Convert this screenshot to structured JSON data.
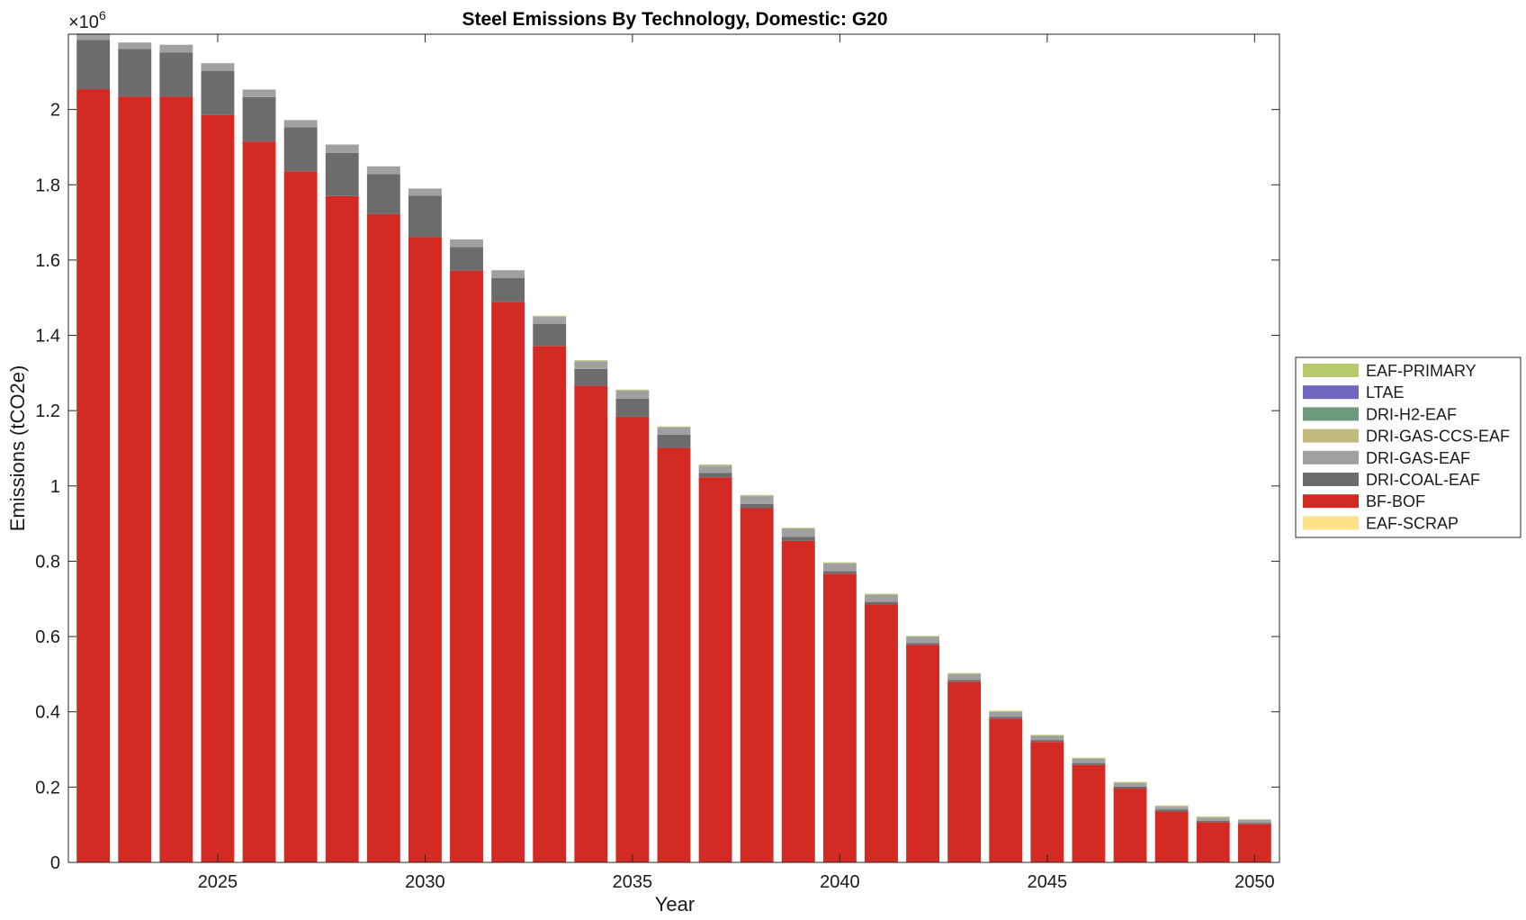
{
  "chart_data": {
    "type": "bar",
    "stacked": true,
    "title": "Steel Emissions By Technology, Domestic: G20",
    "xlabel": "Year",
    "ylabel": "Emissions (tCO2e)",
    "y_exponent_label": "×10",
    "y_exponent": "6",
    "ylim": [
      0,
      2200000
    ],
    "xlim": [
      2021.4,
      2050.6
    ],
    "xticks": [
      "2025",
      "2030",
      "2035",
      "2040",
      "2045",
      "2050"
    ],
    "yticks": [
      "0",
      "0.2",
      "0.4",
      "0.6",
      "0.8",
      "1",
      "1.2",
      "1.4",
      "1.6",
      "1.8",
      "2"
    ],
    "grid": false,
    "legend_position": "outside-right",
    "x": [
      2022,
      2023,
      2024,
      2025,
      2026,
      2027,
      2028,
      2029,
      2030,
      2031,
      2032,
      2033,
      2034,
      2035,
      2036,
      2037,
      2038,
      2039,
      2040,
      2041,
      2042,
      2043,
      2044,
      2045,
      2046,
      2047,
      2048,
      2049,
      2050
    ],
    "series": [
      {
        "name": "EAF-SCRAP",
        "color": "#fde28a",
        "values": [
          0,
          0,
          0,
          0,
          0,
          0,
          0,
          0,
          0,
          0,
          0,
          0,
          0,
          0,
          0,
          0,
          0,
          0,
          0,
          0,
          0,
          0,
          0,
          0,
          0,
          0,
          0,
          0,
          0
        ]
      },
      {
        "name": "BF-BOF",
        "color": "#d42a24",
        "values": [
          2054000,
          2034000,
          2034000,
          1985000,
          1915000,
          1836000,
          1770000,
          1722000,
          1661000,
          1572000,
          1489000,
          1372000,
          1266000,
          1184000,
          1101000,
          1023000,
          941000,
          854000,
          767000,
          685000,
          578000,
          480000,
          382000,
          320000,
          259000,
          196000,
          135000,
          107000,
          102000
        ]
      },
      {
        "name": "DRI-COAL-EAF",
        "color": "#6c6c6c",
        "values": [
          131000,
          127000,
          117000,
          117000,
          118000,
          117000,
          115000,
          106000,
          110000,
          63000,
          63000,
          58000,
          45000,
          48000,
          35000,
          12000,
          11000,
          11000,
          7000,
          7000,
          5000,
          5000,
          5000,
          5000,
          5000,
          5000,
          5000,
          3000,
          3000
        ]
      },
      {
        "name": "DRI-GAS-EAF",
        "color": "#a0a0a0",
        "values": [
          17000,
          17000,
          21000,
          21000,
          20000,
          19000,
          22000,
          21000,
          19000,
          20000,
          21000,
          19000,
          20000,
          21000,
          19000,
          19000,
          21000,
          21000,
          20000,
          19000,
          16000,
          15000,
          13000,
          11000,
          11000,
          10000,
          8000,
          9000,
          8000
        ]
      },
      {
        "name": "DRI-GAS-CCS-EAF",
        "color": "#c2b97c",
        "values": [
          0,
          0,
          0,
          0,
          0,
          0,
          0,
          0,
          0,
          0,
          0,
          2000,
          2000,
          2000,
          2000,
          2000,
          2000,
          2000,
          2000,
          2000,
          2000,
          2000,
          2000,
          2000,
          2000,
          2000,
          2000,
          2000,
          1000
        ]
      },
      {
        "name": "DRI-H2-EAF",
        "color": "#6e9a7c",
        "values": [
          0,
          0,
          0,
          0,
          0,
          0,
          0,
          0,
          0,
          0,
          0,
          0,
          0,
          0,
          0,
          0,
          0,
          0,
          0,
          0,
          0,
          0,
          0,
          0,
          0,
          0,
          0,
          0,
          0
        ]
      },
      {
        "name": "LTAE",
        "color": "#6f66c0",
        "values": [
          0,
          0,
          0,
          0,
          0,
          0,
          0,
          0,
          0,
          0,
          0,
          0,
          0,
          0,
          0,
          0,
          0,
          0,
          0,
          0,
          0,
          0,
          0,
          0,
          0,
          0,
          0,
          0,
          0
        ]
      },
      {
        "name": "EAF-PRIMARY",
        "color": "#b7c96d",
        "values": [
          0,
          0,
          0,
          0,
          0,
          0,
          0,
          0,
          0,
          0,
          0,
          1000,
          1000,
          1000,
          1000,
          1000,
          1000,
          1000,
          1000,
          1000,
          1000,
          1000,
          1000,
          1000,
          1000,
          1000,
          1000,
          1000,
          1000
        ]
      }
    ],
    "legend_order": [
      "EAF-PRIMARY",
      "LTAE",
      "DRI-H2-EAF",
      "DRI-GAS-CCS-EAF",
      "DRI-GAS-EAF",
      "DRI-COAL-EAF",
      "BF-BOF",
      "EAF-SCRAP"
    ]
  }
}
